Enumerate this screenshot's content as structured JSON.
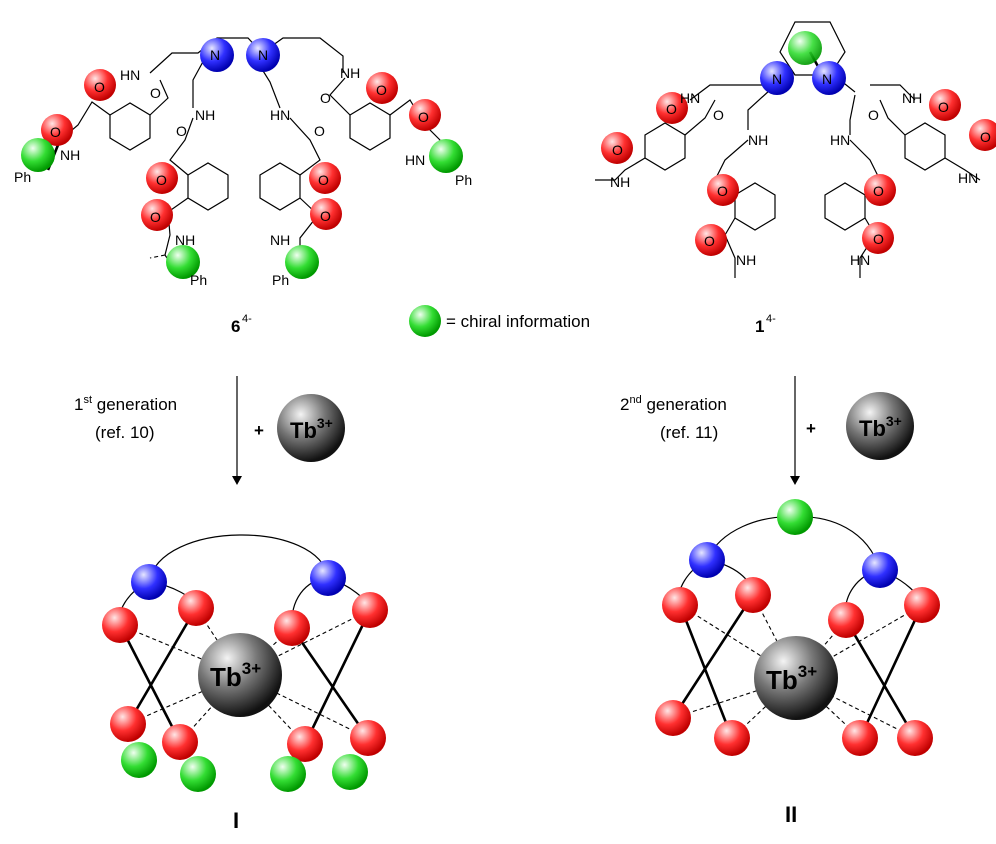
{
  "legend": {
    "text": "= chiral information",
    "color": "#22cc22"
  },
  "compounds": {
    "left_id": "6",
    "left_charge": "4-",
    "right_id": "1",
    "right_charge": "4-"
  },
  "arrows": {
    "left": {
      "gen_num": "1",
      "gen_sup": "st",
      "gen_text": " generation",
      "ref": "(ref. 10)"
    },
    "right": {
      "gen_num": "2",
      "gen_sup": "nd",
      "gen_text": " generation",
      "ref": "(ref. 11)"
    },
    "plus": "+"
  },
  "ion": {
    "symbol": "Tb",
    "charge": "3+"
  },
  "complexes": {
    "left": "I",
    "right": "II"
  },
  "atoms": {
    "N": "N",
    "HN": "HN",
    "NH": "NH",
    "O": "O",
    "Ph": "Ph",
    "minus": "−"
  },
  "colors": {
    "oxygen": "#ee3333",
    "nitrogen": "#3333dd",
    "chiral": "#22cc22",
    "terbium": "#333333"
  }
}
